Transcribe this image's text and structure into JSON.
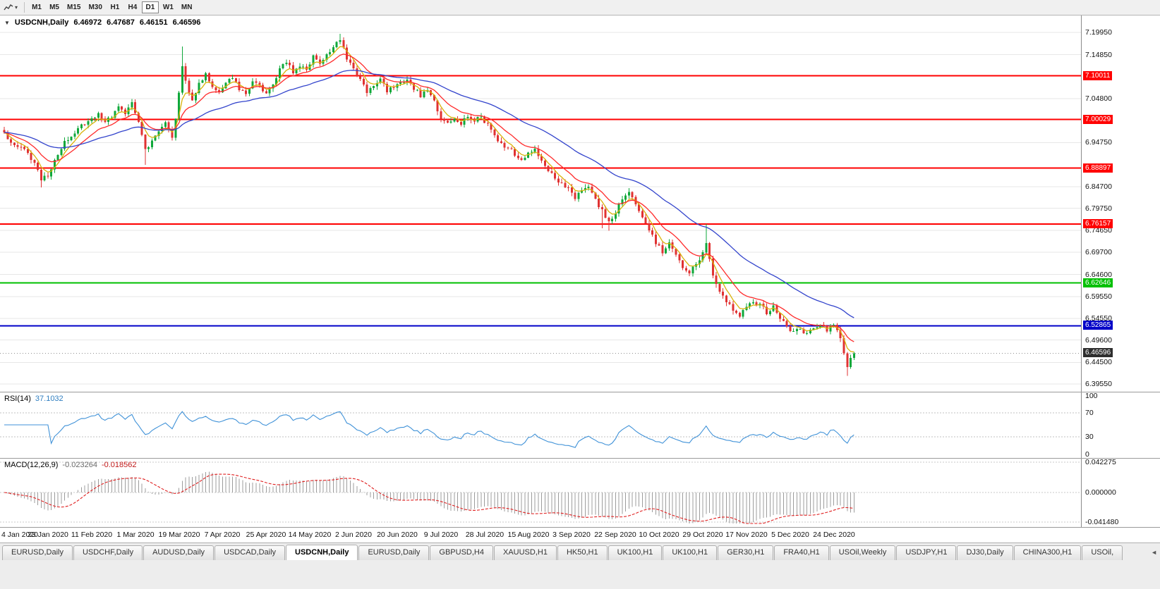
{
  "toolbar": {
    "caret_icon": "▾",
    "timeframes": [
      "M1",
      "M5",
      "M15",
      "M30",
      "H1",
      "H4",
      "D1",
      "W1",
      "MN"
    ],
    "active_timeframe": "D1"
  },
  "main_chart": {
    "collapse_icon": "▼",
    "symbol_title": "USDCNH,Daily",
    "open": "6.46972",
    "high": "6.47687",
    "low": "6.46151",
    "close": "6.46596"
  },
  "price_axis": {
    "ticks": [
      "7.19950",
      "7.14850",
      "7.04800",
      "6.94750",
      "6.84700",
      "6.79750",
      "6.74650",
      "6.69700",
      "6.64600",
      "6.59550",
      "6.54550",
      "6.49600",
      "6.44500",
      "6.39550"
    ],
    "level_labels": [
      {
        "text": "7.10011",
        "color": "#ff0000"
      },
      {
        "text": "7.00029",
        "color": "#ff0000"
      },
      {
        "text": "6.88897",
        "color": "#ff0000"
      },
      {
        "text": "6.76157",
        "color": "#ff0000"
      },
      {
        "text": "6.62646",
        "color": "#00c000"
      },
      {
        "text": "6.52865",
        "color": "#0000c8"
      },
      {
        "text": "6.46596",
        "color": "#2e2e2e"
      }
    ]
  },
  "rsi_panel": {
    "label": "RSI(14)",
    "value": "37.1032",
    "ticks": [
      "100",
      "70",
      "30",
      "0"
    ]
  },
  "macd_panel": {
    "label": "MACD(12,26,9)",
    "value1": "-0.023264",
    "value2": "-0.018562",
    "ticks": [
      "0.042275",
      "0.000000",
      "-0.041480"
    ]
  },
  "tabs": {
    "scroll_left_icon": "◄",
    "active_index": 4,
    "items": [
      "EURUSD,Daily",
      "USDCHF,Daily",
      "AUDUSD,Daily",
      "USDCAD,Daily",
      "USDCNH,Daily",
      "EURUSD,Daily",
      "GBPUSD,H4",
      "XAUUSD,H1",
      "HK50,H1",
      "UK100,H1",
      "UK100,H1",
      "GER30,H1",
      "FRA40,H1",
      "USOil,Weekly",
      "USDJPY,H1",
      "DJ30,Daily",
      "CHINA300,H1",
      "USOil,"
    ]
  },
  "chart_data": {
    "type": "candlestick",
    "symbol": "USDCNH",
    "timeframe": "Daily",
    "last_ohlc": {
      "open": 6.46972,
      "high": 6.47687,
      "low": 6.46151,
      "close": 6.46596
    },
    "bars": 254,
    "price_range": [
      6.3778,
      7.2382
    ],
    "up_color": "#0fa83a",
    "down_color": "#e03232",
    "current_price": 6.46596,
    "horizontal_levels": [
      {
        "price": 7.10011,
        "color": "#ff0000",
        "width": 2
      },
      {
        "price": 7.00029,
        "color": "#ff0000",
        "width": 2
      },
      {
        "price": 6.88897,
        "color": "#ff0000",
        "width": 2
      },
      {
        "price": 6.76157,
        "color": "#ff0000",
        "width": 2
      },
      {
        "price": 6.62646,
        "color": "#00c000",
        "width": 2
      },
      {
        "price": 6.52865,
        "color": "#0000c8",
        "width": 2
      }
    ],
    "moving_averages": [
      {
        "type": "ema",
        "period": 5,
        "color": "#d9b30a"
      },
      {
        "type": "ema",
        "period": 13,
        "color": "#ff2a2a"
      },
      {
        "type": "ema",
        "period": 40,
        "color": "#3344cc"
      }
    ],
    "indicators": {
      "rsi": {
        "period": 14,
        "value": 37.1032,
        "levels": [
          70,
          30
        ],
        "range": [
          0,
          100
        ],
        "color": "#4092d8"
      },
      "macd": {
        "fast": 12,
        "slow": 26,
        "signal": 9,
        "macd_value": -0.023264,
        "signal_value": -0.018562,
        "histogram_color": "#9c9c9c",
        "signal_color": "#e02020",
        "range": [
          -0.0445,
          0.0445
        ]
      }
    },
    "x_labels": [
      "4 Jan 2020",
      "23 Jan 2020",
      "11 Feb 2020",
      "1 Mar 2020",
      "19 Mar 2020",
      "7 Apr 2020",
      "25 Apr 2020",
      "14 May 2020",
      "2 Jun 2020",
      "20 Jun 2020",
      "9 Jul 2020",
      "28 Jul 2020",
      "15 Aug 2020",
      "3 Sep 2020",
      "22 Sep 2020",
      "10 Oct 2020",
      "29 Oct 2020",
      "17 Nov 2020",
      "5 Dec 2020",
      "24 Dec 2020"
    ],
    "x_label_bar_step": 13,
    "close_anchors": [
      [
        0,
        6.966
      ],
      [
        3,
        6.946
      ],
      [
        6,
        6.928
      ],
      [
        9,
        6.902
      ],
      [
        11,
        6.866
      ],
      [
        13,
        6.874
      ],
      [
        15,
        6.906
      ],
      [
        17,
        6.934
      ],
      [
        19,
        6.958
      ],
      [
        22,
        6.978
      ],
      [
        25,
        6.996
      ],
      [
        28,
        7.014
      ],
      [
        30,
        6.994
      ],
      [
        32,
        7.006
      ],
      [
        34,
        7.028
      ],
      [
        36,
        7.018
      ],
      [
        38,
        7.04
      ],
      [
        40,
        6.996
      ],
      [
        42,
        6.93
      ],
      [
        44,
        6.948
      ],
      [
        46,
        6.978
      ],
      [
        48,
        6.992
      ],
      [
        50,
        6.96
      ],
      [
        51,
        6.998
      ],
      [
        52,
        7.06
      ],
      [
        53,
        7.118
      ],
      [
        54,
        7.09
      ],
      [
        55,
        7.064
      ],
      [
        56,
        7.044
      ],
      [
        58,
        7.088
      ],
      [
        60,
        7.102
      ],
      [
        62,
        7.076
      ],
      [
        64,
        7.058
      ],
      [
        66,
        7.088
      ],
      [
        68,
        7.098
      ],
      [
        70,
        7.07
      ],
      [
        72,
        7.06
      ],
      [
        74,
        7.088
      ],
      [
        76,
        7.078
      ],
      [
        78,
        7.06
      ],
      [
        80,
        7.086
      ],
      [
        82,
        7.112
      ],
      [
        84,
        7.132
      ],
      [
        86,
        7.108
      ],
      [
        88,
        7.126
      ],
      [
        90,
        7.116
      ],
      [
        92,
        7.142
      ],
      [
        94,
        7.128
      ],
      [
        96,
        7.146
      ],
      [
        98,
        7.162
      ],
      [
        100,
        7.183
      ],
      [
        101,
        7.168
      ],
      [
        102,
        7.142
      ],
      [
        104,
        7.116
      ],
      [
        106,
        7.09
      ],
      [
        108,
        7.066
      ],
      [
        110,
        7.082
      ],
      [
        112,
        7.092
      ],
      [
        114,
        7.064
      ],
      [
        116,
        7.076
      ],
      [
        118,
        7.088
      ],
      [
        120,
        7.094
      ],
      [
        122,
        7.07
      ],
      [
        124,
        7.056
      ],
      [
        126,
        7.072
      ],
      [
        128,
        7.042
      ],
      [
        130,
        7.004
      ],
      [
        132,
        6.99
      ],
      [
        134,
        7.006
      ],
      [
        136,
        6.994
      ],
      [
        138,
        7.004
      ],
      [
        140,
        6.996
      ],
      [
        142,
        7.006
      ],
      [
        144,
        6.986
      ],
      [
        146,
        6.964
      ],
      [
        148,
        6.946
      ],
      [
        150,
        6.936
      ],
      [
        152,
        6.92
      ],
      [
        154,
        6.91
      ],
      [
        156,
        6.926
      ],
      [
        158,
        6.934
      ],
      [
        160,
        6.906
      ],
      [
        162,
        6.886
      ],
      [
        164,
        6.87
      ],
      [
        166,
        6.854
      ],
      [
        168,
        6.84
      ],
      [
        170,
        6.824
      ],
      [
        172,
        6.84
      ],
      [
        174,
        6.85
      ],
      [
        176,
        6.82
      ],
      [
        178,
        6.79
      ],
      [
        180,
        6.764
      ],
      [
        182,
        6.79
      ],
      [
        184,
        6.816
      ],
      [
        186,
        6.832
      ],
      [
        188,
        6.806
      ],
      [
        190,
        6.78
      ],
      [
        192,
        6.75
      ],
      [
        194,
        6.716
      ],
      [
        196,
        6.7
      ],
      [
        198,
        6.714
      ],
      [
        200,
        6.688
      ],
      [
        202,
        6.666
      ],
      [
        204,
        6.65
      ],
      [
        206,
        6.67
      ],
      [
        208,
        6.696
      ],
      [
        209,
        6.72
      ],
      [
        210,
        6.686
      ],
      [
        211,
        6.646
      ],
      [
        213,
        6.604
      ],
      [
        215,
        6.584
      ],
      [
        217,
        6.568
      ],
      [
        219,
        6.554
      ],
      [
        221,
        6.568
      ],
      [
        223,
        6.582
      ],
      [
        225,
        6.574
      ],
      [
        227,
        6.56
      ],
      [
        229,
        6.57
      ],
      [
        231,
        6.548
      ],
      [
        233,
        6.528
      ],
      [
        235,
        6.514
      ],
      [
        237,
        6.524
      ],
      [
        239,
        6.508
      ],
      [
        241,
        6.52
      ],
      [
        243,
        6.528
      ],
      [
        245,
        6.518
      ],
      [
        247,
        6.532
      ],
      [
        249,
        6.504
      ],
      [
        250,
        6.466
      ],
      [
        251,
        6.434
      ],
      [
        252,
        6.45
      ],
      [
        253,
        6.46596
      ]
    ],
    "wick_events": [
      {
        "bar": 11,
        "low": 6.845
      },
      {
        "bar": 42,
        "low": 6.897
      },
      {
        "bar": 53,
        "high": 7.167
      },
      {
        "bar": 100,
        "high": 7.1965
      },
      {
        "bar": 178,
        "low": 6.752
      },
      {
        "bar": 180,
        "low": 6.746
      },
      {
        "bar": 209,
        "high": 6.761
      },
      {
        "bar": 251,
        "low": 6.414
      }
    ]
  }
}
